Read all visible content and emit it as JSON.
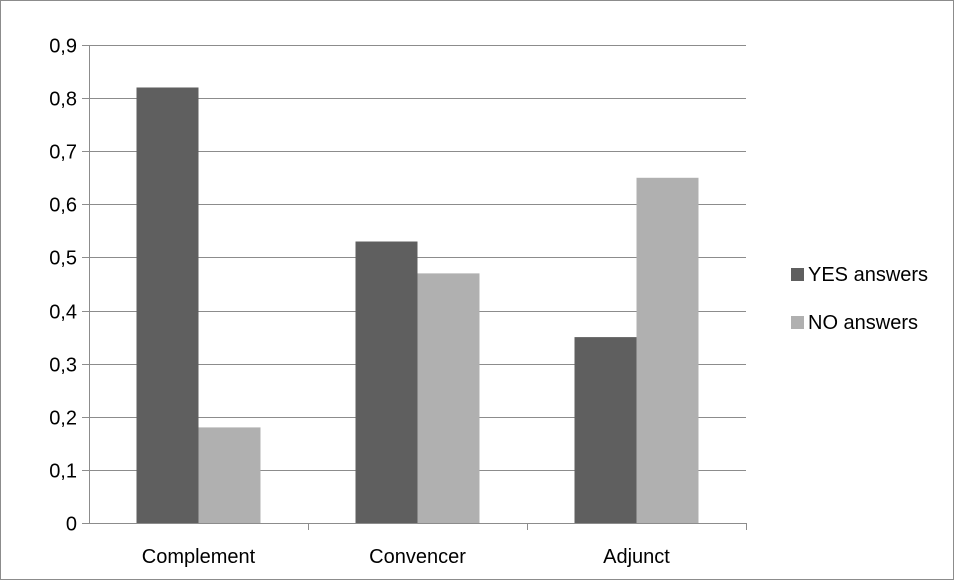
{
  "chart_data": {
    "type": "bar",
    "categories": [
      "Complement",
      "Convencer",
      "Adjunct"
    ],
    "series": [
      {
        "name": "YES answers",
        "values": [
          0.82,
          0.53,
          0.35
        ],
        "color": "#5f5f5f"
      },
      {
        "name": "NO answers",
        "values": [
          0.18,
          0.47,
          0.65
        ],
        "color": "#b0b0b0"
      }
    ],
    "title": "",
    "xlabel": "",
    "ylabel": "",
    "ylim": [
      0,
      0.9
    ],
    "yticks": [
      "0",
      "0,1",
      "0,2",
      "0,3",
      "0,4",
      "0,5",
      "0,6",
      "0,7",
      "0,8",
      "0,9"
    ],
    "grid": true,
    "legend_position": "right"
  }
}
